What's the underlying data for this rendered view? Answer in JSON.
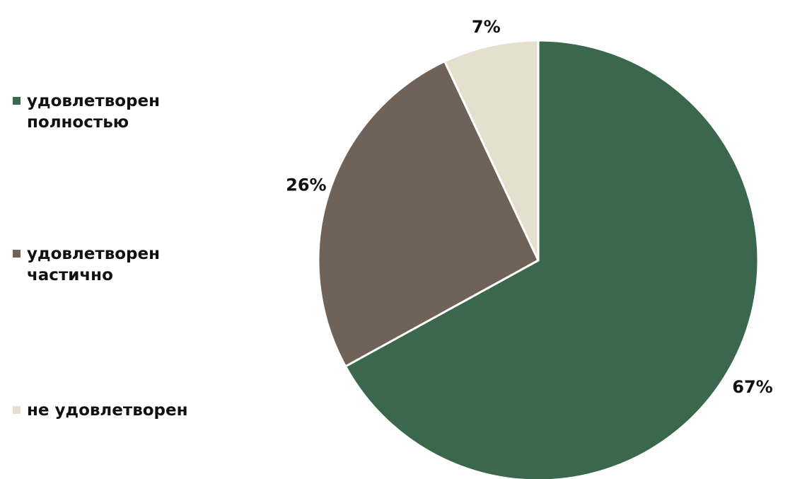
{
  "chart_data": {
    "type": "pie",
    "title": "",
    "start_angle_deg": 0,
    "direction": "clockwise",
    "legend_position": "left",
    "slices": [
      {
        "name": "удовлетворен полностью",
        "value": 67,
        "label": "67%",
        "color": "#3b684d"
      },
      {
        "name": "удовлетворен частично",
        "value": 26,
        "label": "26%",
        "color": "#6e6259"
      },
      {
        "name": "не удовлетворен",
        "value": 7,
        "label": "7%",
        "color": "#e5dfcd"
      }
    ]
  }
}
